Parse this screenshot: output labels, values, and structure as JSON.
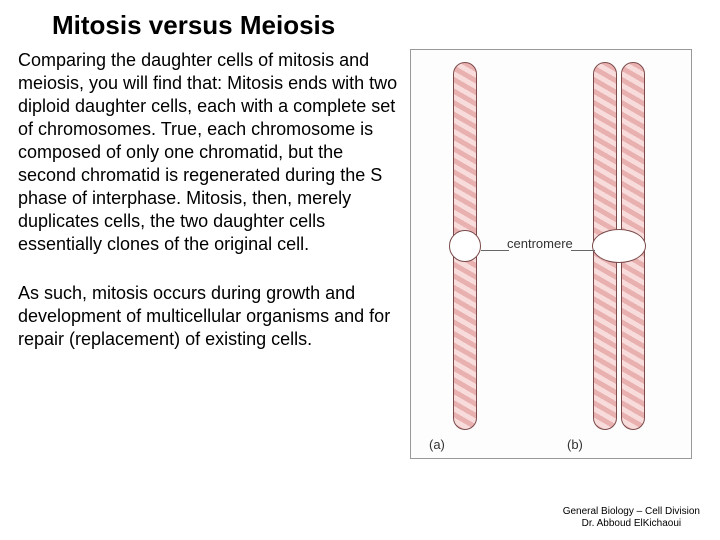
{
  "title": "Mitosis versus Meiosis",
  "paragraph1": "Comparing the daughter cells of mitosis and meiosis, you will find that: Mitosis ends with two diploid daughter cells, each with a complete set of chromosomes. True, each chromosome is composed of only one chromatid, but the second chromatid is regenerated during the S phase of interphase. Mitosis, then, merely duplicates cells, the two daughter cells essentially clones of the original cell.",
  "paragraph2": "As such, mitosis occurs during growth and development of multicellular organisms and for repair (replacement) of existing cells.",
  "figure": {
    "centromere_label": "centromere",
    "label_a": "(a)",
    "label_b": "(b)",
    "chromatid_fill": "#e9b0b0",
    "chromatid_stroke": "#7a4a4a",
    "background": "#fdfdfd",
    "border": "#999999"
  },
  "footer": {
    "line1": "General Biology – Cell Division",
    "line2": "Dr. Abboud ElKichaoui"
  }
}
